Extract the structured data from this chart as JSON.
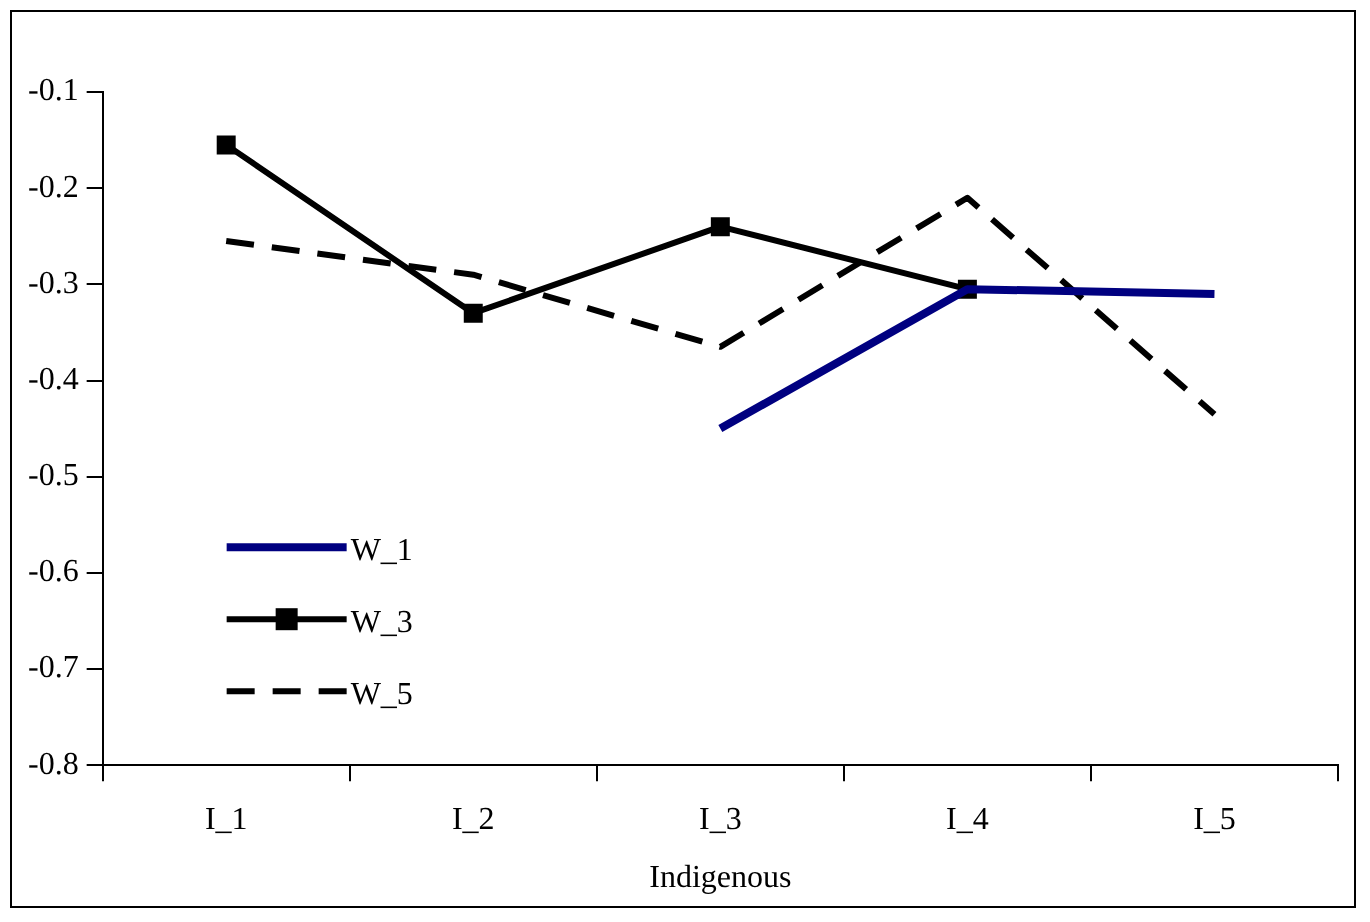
{
  "chart_data": {
    "type": "line",
    "xlabel": "Indigenous",
    "categories": [
      "I_1",
      "I_2",
      "I_3",
      "I_4",
      "I_5"
    ],
    "ylim": [
      -0.8,
      -0.1
    ],
    "yticks": [
      -0.8,
      -0.7,
      -0.6,
      -0.5,
      -0.4,
      -0.3,
      -0.2,
      -0.1
    ],
    "grid": false,
    "legend": "bottom left",
    "series": [
      {
        "name": "W_1",
        "color": "#000080",
        "values": [
          null,
          null,
          -0.45,
          -0.305,
          -0.31
        ],
        "marker": "none",
        "line_style": "solid"
      },
      {
        "name": "W_3",
        "color": "#000000",
        "values": [
          -0.155,
          -0.33,
          -0.24,
          -0.305,
          null
        ],
        "marker": "square",
        "line_style": "solid"
      },
      {
        "name": "W_5",
        "color": "#000000",
        "values": [
          -0.255,
          -0.29,
          -0.365,
          -0.21,
          -0.435
        ],
        "marker": "none",
        "line_style": "dashed"
      }
    ]
  }
}
